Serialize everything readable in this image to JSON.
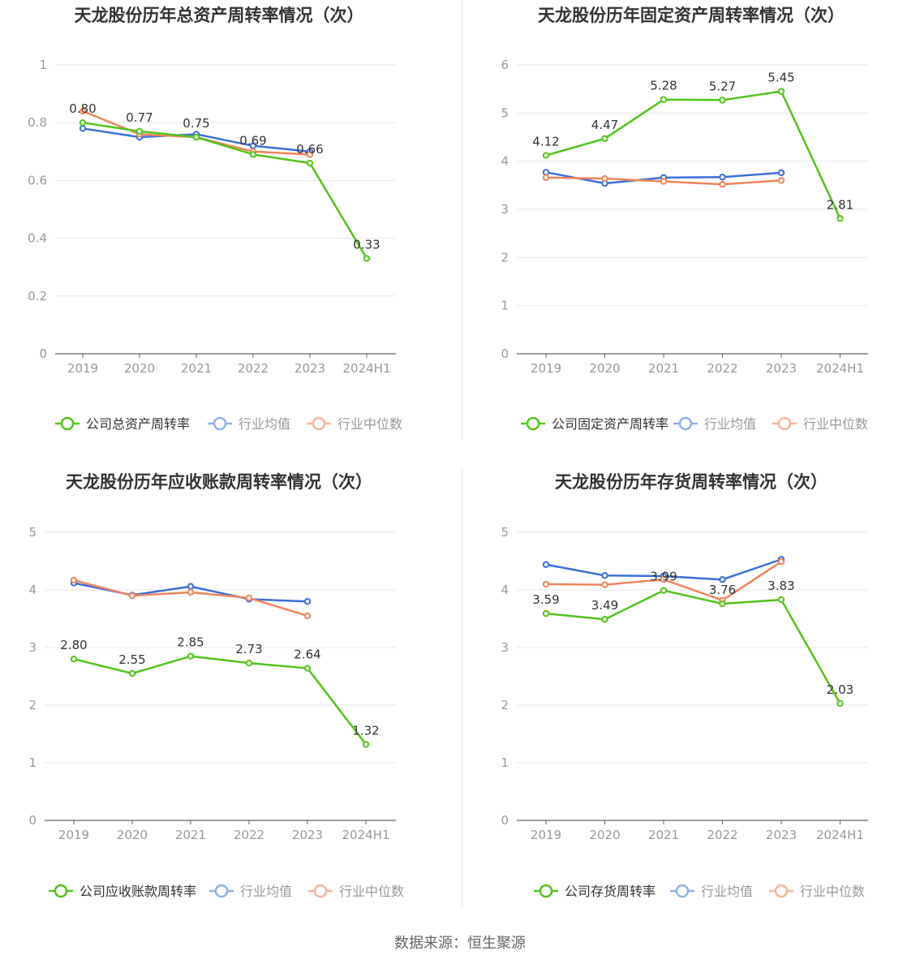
{
  "colors": {
    "company": "#52c41a",
    "avg": "#3b6fd8",
    "median": "#f0845c"
  },
  "source_label": "数据来源：恒生聚源",
  "chart_data": [
    {
      "type": "line",
      "title": "天龙股份历年总资产周转率情况（次）",
      "categories": [
        "2019",
        "2020",
        "2021",
        "2022",
        "2023",
        "2024H1"
      ],
      "ylim": [
        0,
        1
      ],
      "yticks": [
        "0",
        "0.2",
        "0.4",
        "0.6",
        "0.8",
        "1"
      ],
      "ytick_values": [
        0,
        0.2,
        0.4,
        0.6,
        0.8,
        1
      ],
      "grid": true,
      "legend_position": "bottom",
      "series": [
        {
          "name": "公司总资产周转率",
          "key": "company",
          "values": [
            0.8,
            0.77,
            0.75,
            0.69,
            0.66,
            0.33
          ],
          "labels": [
            "0.80",
            "0.77",
            "0.75",
            "0.69",
            "0.66",
            "0.33"
          ]
        },
        {
          "name": "行业均值",
          "key": "avg",
          "values": [
            0.78,
            0.75,
            0.76,
            0.72,
            0.7,
            null
          ]
        },
        {
          "name": "行业中位数",
          "key": "median",
          "values": [
            0.84,
            0.76,
            0.75,
            0.7,
            0.69,
            null
          ]
        }
      ]
    },
    {
      "type": "line",
      "title": "天龙股份历年固定资产周转率情况（次）",
      "categories": [
        "2019",
        "2020",
        "2021",
        "2022",
        "2023",
        "2024H1"
      ],
      "ylim": [
        0,
        6
      ],
      "yticks": [
        "0",
        "1",
        "2",
        "3",
        "4",
        "5",
        "6"
      ],
      "ytick_values": [
        0,
        1,
        2,
        3,
        4,
        5,
        6
      ],
      "grid": true,
      "legend_position": "bottom",
      "series": [
        {
          "name": "公司固定资产周转率",
          "key": "company",
          "values": [
            4.12,
            4.47,
            5.28,
            5.27,
            5.45,
            2.81
          ],
          "labels": [
            "4.12",
            "4.47",
            "5.28",
            "5.27",
            "5.45",
            "2.81"
          ]
        },
        {
          "name": "行业均值",
          "key": "avg",
          "values": [
            3.77,
            3.54,
            3.66,
            3.67,
            3.76,
            null
          ]
        },
        {
          "name": "行业中位数",
          "key": "median",
          "values": [
            3.66,
            3.64,
            3.58,
            3.52,
            3.6,
            null
          ]
        }
      ]
    },
    {
      "type": "line",
      "title": "天龙股份历年应收账款周转率情况（次）",
      "categories": [
        "2019",
        "2020",
        "2021",
        "2022",
        "2023",
        "2024H1"
      ],
      "ylim": [
        0,
        5
      ],
      "yticks": [
        "0",
        "1",
        "2",
        "3",
        "4",
        "5"
      ],
      "ytick_values": [
        0,
        1,
        2,
        3,
        4,
        5
      ],
      "grid": true,
      "legend_position": "bottom",
      "series": [
        {
          "name": "公司应收账款周转率",
          "key": "company",
          "values": [
            2.8,
            2.55,
            2.85,
            2.73,
            2.64,
            1.32
          ],
          "labels": [
            "2.80",
            "2.55",
            "2.85",
            "2.73",
            "2.64",
            "1.32"
          ]
        },
        {
          "name": "行业均值",
          "key": "avg",
          "values": [
            4.12,
            3.91,
            4.06,
            3.84,
            3.8,
            null
          ]
        },
        {
          "name": "行业中位数",
          "key": "median",
          "values": [
            4.17,
            3.9,
            3.96,
            3.86,
            3.55,
            null
          ]
        }
      ]
    },
    {
      "type": "line",
      "title": "天龙股份历年存货周转率情况（次）",
      "categories": [
        "2019",
        "2020",
        "2021",
        "2022",
        "2023",
        "2024H1"
      ],
      "ylim": [
        0,
        5
      ],
      "yticks": [
        "0",
        "1",
        "2",
        "3",
        "4",
        "5"
      ],
      "ytick_values": [
        0,
        1,
        2,
        3,
        4,
        5
      ],
      "grid": true,
      "legend_position": "bottom",
      "series": [
        {
          "name": "公司存货周转率",
          "key": "company",
          "values": [
            3.59,
            3.49,
            3.99,
            3.76,
            3.83,
            2.03
          ],
          "labels": [
            "3.59",
            "3.49",
            "3.99",
            "3.76",
            "3.83",
            "2.03"
          ]
        },
        {
          "name": "行业均值",
          "key": "avg",
          "values": [
            4.44,
            4.25,
            4.24,
            4.18,
            4.53,
            null
          ]
        },
        {
          "name": "行业中位数",
          "key": "median",
          "values": [
            4.1,
            4.09,
            4.18,
            3.82,
            4.49,
            null
          ]
        }
      ]
    }
  ]
}
